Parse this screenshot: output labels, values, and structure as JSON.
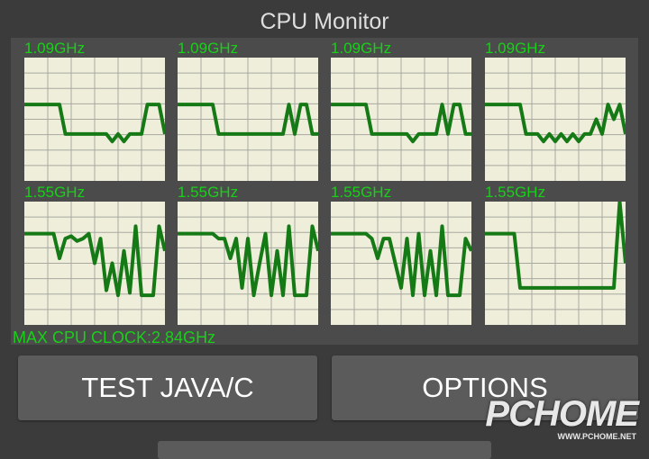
{
  "header": {
    "title": "CPU Monitor"
  },
  "cores": [
    "1.09GHz",
    "1.09GHz",
    "1.09GHz",
    "1.09GHz",
    "1.55GHz",
    "1.55GHz",
    "1.55GHz",
    "1.55GHz"
  ],
  "max_clock": "MAX CPU CLOCK:2.84GHz",
  "buttons": [
    "TEST JAVA/C",
    "OPTIONS"
  ],
  "watermark": {
    "logo": "PCHOME",
    "url": "WWW.PCHOME.NET"
  }
}
